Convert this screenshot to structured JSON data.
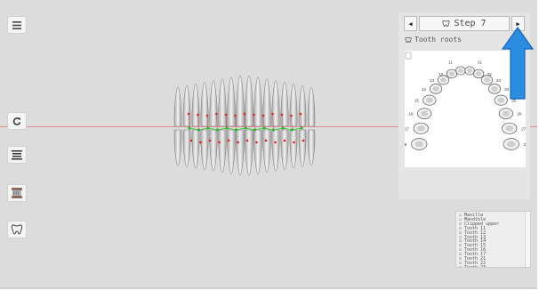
{
  "toolbar": {
    "menu_icon": "hamburger-icon",
    "reset_icon": "rotate-icon",
    "occlusion_icon": "stacked-lines-icon",
    "jaw_icon": "jaw-icon",
    "tooth_icon": "tooth-icon"
  },
  "step_nav": {
    "label": "Step 7",
    "prev_glyph": "◀",
    "next_glyph": "▶"
  },
  "tooth_roots_label": "Tooth roots",
  "tooth_chart": {
    "numbers": [
      "11",
      "12",
      "13",
      "14",
      "15",
      "16",
      "17",
      "18",
      "21",
      "22",
      "23",
      "24",
      "25",
      "26",
      "27",
      "28"
    ]
  },
  "layer_list": {
    "items": [
      {
        "checked": false,
        "label": "Maxilla"
      },
      {
        "checked": false,
        "label": "Mandible"
      },
      {
        "checked": true,
        "label": "Clipped upper"
      },
      {
        "checked": true,
        "label": "Tooth 11"
      },
      {
        "checked": true,
        "label": "Tooth 12"
      },
      {
        "checked": true,
        "label": "Tooth 13"
      },
      {
        "checked": true,
        "label": "Tooth 14"
      },
      {
        "checked": true,
        "label": "Tooth 15"
      },
      {
        "checked": true,
        "label": "Tooth 16"
      },
      {
        "checked": true,
        "label": "Tooth 17"
      },
      {
        "checked": true,
        "label": "Tooth 21"
      },
      {
        "checked": true,
        "label": "Tooth 22"
      },
      {
        "checked": true,
        "label": "Tooth 23"
      }
    ]
  },
  "colors": {
    "viewport_bg": "#dcdcdc",
    "occlusal_line": "#e38e8e",
    "marker_red": "#e02020",
    "marker_green": "#2dbb2d",
    "annotation_arrow": "#1e88e5"
  }
}
